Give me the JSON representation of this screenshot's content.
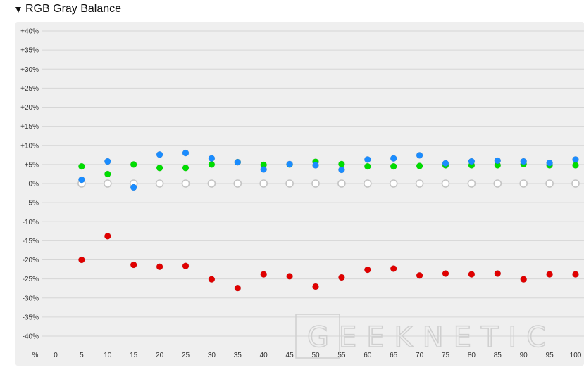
{
  "header": {
    "title": "RGB Gray Balance"
  },
  "watermark": "GEEKNETIC",
  "chart_data": {
    "type": "scatter",
    "title": "RGB Gray Balance",
    "xlabel": "%",
    "ylabel": "",
    "x_ticks": [
      "0",
      "5",
      "10",
      "15",
      "20",
      "25",
      "30",
      "35",
      "40",
      "45",
      "50",
      "55",
      "60",
      "65",
      "70",
      "75",
      "80",
      "85",
      "90",
      "95",
      "100"
    ],
    "y_ticks": [
      "+40%",
      "+35%",
      "+30%",
      "+25%",
      "+20%",
      "+15%",
      "+10%",
      "+5%",
      "0%",
      "-5%",
      "-10%",
      "-15%",
      "-20%",
      "-25%",
      "-30%",
      "-35%",
      "-40%"
    ],
    "ylim": [
      -40,
      40
    ],
    "xlim": [
      0,
      100
    ],
    "grid": true,
    "x": [
      5,
      10,
      15,
      20,
      25,
      30,
      35,
      40,
      45,
      50,
      55,
      60,
      65,
      70,
      75,
      80,
      85,
      90,
      95,
      100
    ],
    "series": [
      {
        "name": "",
        "color": "#e00000",
        "values": [
          -20,
          -13.8,
          -21.3,
          -21.8,
          -21.6,
          -25.1,
          -27.4,
          -23.8,
          -24.3,
          -27,
          -24.6,
          -22.6,
          -22.3,
          -24.1,
          -23.6,
          -23.8,
          -23.6,
          -25.1,
          -23.8,
          -23.8
        ]
      },
      {
        "name": "",
        "color": "#00dd00",
        "values": [
          4.5,
          2.5,
          5,
          4.1,
          4.1,
          5,
          5.6,
          4.9,
          5,
          5.7,
          5.1,
          4.5,
          4.5,
          4.6,
          4.8,
          4.8,
          4.8,
          5.1,
          4.8,
          4.8
        ]
      },
      {
        "name": "",
        "color": "#1a8cff",
        "values": [
          1,
          5.8,
          -1,
          7.6,
          8,
          6.6,
          5.6,
          3.7,
          5.1,
          4.8,
          3.6,
          6.3,
          6.6,
          7.4,
          5.3,
          5.8,
          6,
          5.8,
          5.4,
          6.3
        ]
      },
      {
        "name": "",
        "color": "none",
        "stroke": "#c4c4c4",
        "values": [
          0,
          0,
          0,
          0,
          0,
          0,
          0,
          0,
          0,
          0,
          0,
          0,
          0,
          0,
          0,
          0,
          0,
          0,
          0,
          0
        ]
      }
    ]
  }
}
